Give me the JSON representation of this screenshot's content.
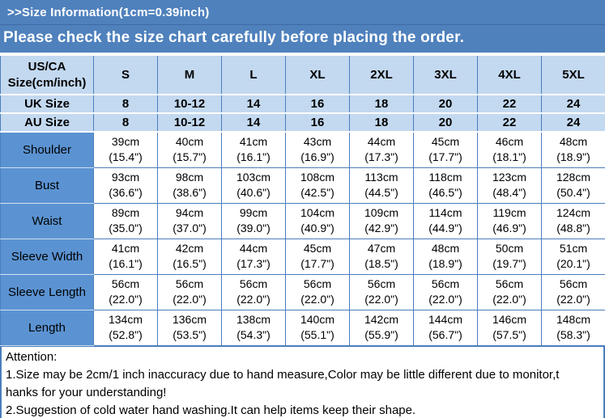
{
  "banner": {
    "line1": ">>Size Information(1cm=0.39inch)",
    "line2": "Please check the size chart carefully before placing the order."
  },
  "table": {
    "header_rows": [
      {
        "label": "US/CA Size(cm/inch)",
        "values": [
          "S",
          "M",
          "L",
          "XL",
          "2XL",
          "3XL",
          "4XL",
          "5XL"
        ]
      },
      {
        "label": "UK Size",
        "values": [
          "8",
          "10-12",
          "14",
          "16",
          "18",
          "20",
          "22",
          "24"
        ]
      },
      {
        "label": "AU Size",
        "values": [
          "8",
          "10-12",
          "14",
          "16",
          "18",
          "20",
          "22",
          "24"
        ]
      }
    ],
    "measurement_rows": [
      {
        "label": "Shoulder",
        "cm": [
          "39cm",
          "40cm",
          "41cm",
          "43cm",
          "44cm",
          "45cm",
          "46cm",
          "48cm"
        ],
        "inch": [
          "(15.4\")",
          "(15.7\")",
          "(16.1\")",
          "(16.9\")",
          "(17.3\")",
          "(17.7\")",
          "(18.1\")",
          "(18.9\")"
        ]
      },
      {
        "label": "Bust",
        "cm": [
          "93cm",
          "98cm",
          "103cm",
          "108cm",
          "113cm",
          "118cm",
          "123cm",
          "128cm"
        ],
        "inch": [
          "(36.6\")",
          "(38.6\")",
          "(40.6\")",
          "(42.5\")",
          "(44.5\")",
          "(46.5\")",
          "(48.4\")",
          "(50.4\")"
        ]
      },
      {
        "label": "Waist",
        "cm": [
          "89cm",
          "94cm",
          "99cm",
          "104cm",
          "109cm",
          "114cm",
          "119cm",
          "124cm"
        ],
        "inch": [
          "(35.0\")",
          "(37.0\")",
          "(39.0\")",
          "(40.9\")",
          "(42.9\")",
          "(44.9\")",
          "(46.9\")",
          "(48.8\")"
        ]
      },
      {
        "label": "Sleeve Width",
        "cm": [
          "41cm",
          "42cm",
          "44cm",
          "45cm",
          "47cm",
          "48cm",
          "50cm",
          "51cm"
        ],
        "inch": [
          "(16.1\")",
          "(16.5\")",
          "(17.3\")",
          "(17.7\")",
          "(18.5\")",
          "(18.9\")",
          "(19.7\")",
          "(20.1\")"
        ]
      },
      {
        "label": "Sleeve Length",
        "cm": [
          "56cm",
          "56cm",
          "56cm",
          "56cm",
          "56cm",
          "56cm",
          "56cm",
          "56cm"
        ],
        "inch": [
          "(22.0\")",
          "(22.0\")",
          "(22.0\")",
          "(22.0\")",
          "(22.0\")",
          "(22.0\")",
          "(22.0\")",
          "(22.0\")"
        ]
      },
      {
        "label": "Length",
        "cm": [
          "134cm",
          "136cm",
          "138cm",
          "140cm",
          "142cm",
          "144cm",
          "146cm",
          "148cm"
        ],
        "inch": [
          "(52.8\")",
          "(53.5\")",
          "(54.3\")",
          "(55.1\")",
          "(55.9\")",
          "(56.7\")",
          "(57.5\")",
          "(58.3\")"
        ]
      }
    ]
  },
  "attention": {
    "title": "Attention:",
    "lines": [
      "1.Size may be 2cm/1 inch inaccuracy due to hand measure,Color may be little different due to monitor,t",
      "hanks for your understanding!",
      "2.Suggestion of cold water hand washing.It can help items keep their shape."
    ]
  },
  "colors": {
    "banner_blue": "#4f81bd",
    "header_cell_blue": "#c3d9f0",
    "row_label_blue": "#5b93d2",
    "border_blue": "#4a7ebc",
    "banner_text": "#ffffff",
    "table_text": "#000000"
  }
}
